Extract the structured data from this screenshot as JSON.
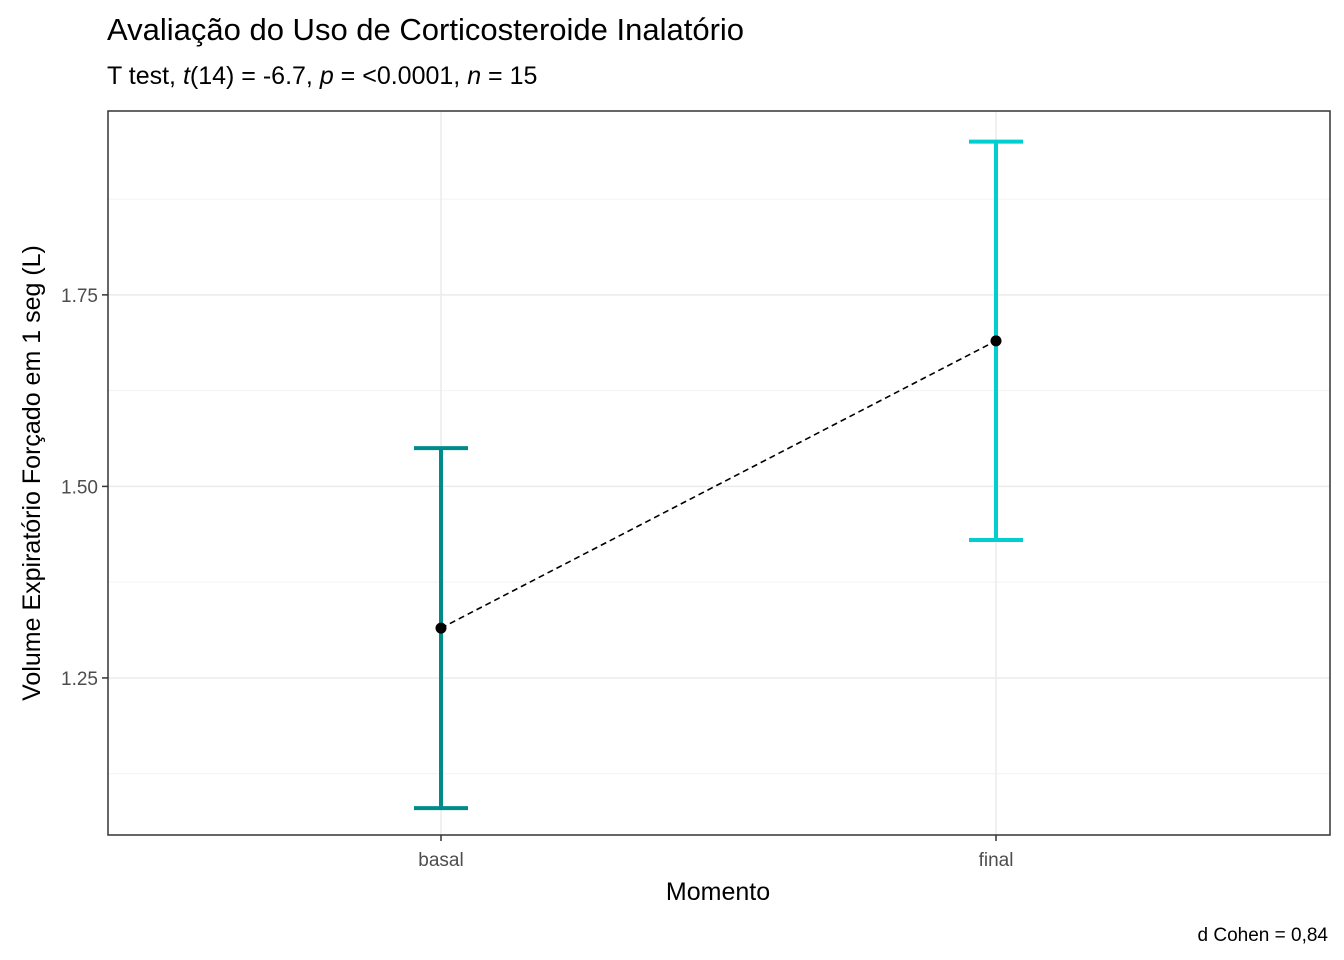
{
  "chart_data": {
    "type": "scatter",
    "title": "Avaliação do Uso de Corticosteroide Inalatório",
    "subtitle": {
      "t1": "T test, ",
      "t2": "t",
      "t3": "(14) = -6.7, ",
      "t4": "p",
      "t5": " = <0.0001, ",
      "t6": "n",
      "t7": " = 15"
    },
    "xlabel": "Momento",
    "ylabel": "Volume Expiratório Forçado em 1 seg (L)",
    "caption": "d Cohen = 0,84",
    "categories": [
      "basal",
      "final"
    ],
    "mean": [
      1.315,
      1.69
    ],
    "error_low": [
      1.08,
      1.43
    ],
    "error_high": [
      1.55,
      1.95
    ],
    "colors": [
      "#008B8B",
      "#00CED1"
    ],
    "connector": "dashed",
    "ylim": [
      1.045,
      1.99
    ],
    "yticks": [
      1.25,
      1.5,
      1.75
    ],
    "ytick_labels": [
      "1.25",
      "1.50",
      "1.75"
    ],
    "grid": true
  }
}
